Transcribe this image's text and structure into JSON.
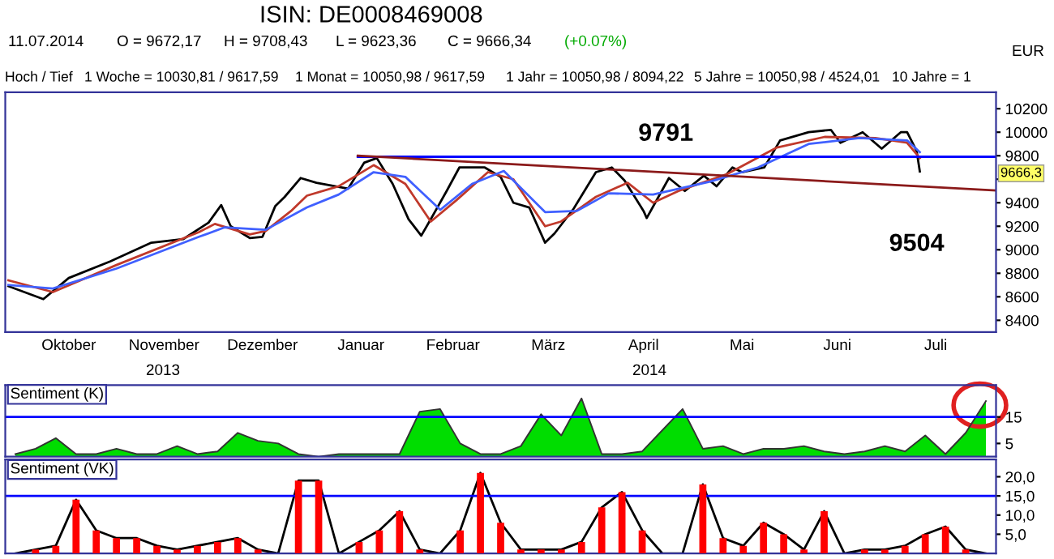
{
  "chart_data": [
    {
      "type": "line",
      "xlim": [
        "2013-09-26",
        "2014-08-04"
      ],
      "ylim": [
        8300,
        10340
      ],
      "yticks": [
        8400,
        8600,
        8800,
        9000,
        9200,
        9400,
        {
          "value": 9600,
          "label": null
        },
        9800,
        10000,
        10200
      ],
      "xticks": [
        {
          "value": "2013-10-16",
          "label": "Oktober"
        },
        {
          "value": "2013-11-15",
          "label": "November"
        },
        {
          "value": "2013-12-16",
          "label": "Dezember"
        },
        {
          "value": "2014-01-16",
          "label": "Januar"
        },
        {
          "value": "2014-02-14",
          "label": "Februar"
        },
        {
          "value": "2014-03-16",
          "label": "März"
        },
        {
          "value": "2014-04-15",
          "label": "April"
        },
        {
          "value": "2014-05-16",
          "label": "Mai"
        },
        {
          "value": "2014-06-15",
          "label": "Juni"
        },
        {
          "value": "2014-07-16",
          "label": "Juli"
        }
      ],
      "grid": false,
      "series": [
        {
          "color": "#000000",
          "x": [
            "2013-09-27",
            "2013-10-08",
            "2013-10-16",
            "2013-10-29",
            "2013-11-11",
            "2013-11-21",
            "2013-11-29",
            "2013-12-03",
            "2013-12-06",
            "2013-12-12",
            "2013-12-16",
            "2013-12-20",
            "2013-12-23",
            "2013-12-28",
            "2014-01-02",
            "2014-01-12",
            "2014-01-17",
            "2014-01-21",
            "2014-01-26",
            "2014-01-31",
            "2014-02-04",
            "2014-02-07",
            "2014-02-12",
            "2014-02-16",
            "2014-02-24",
            "2014-03-01",
            "2014-03-05",
            "2014-03-10",
            "2014-03-15",
            "2014-03-18",
            "2014-03-24",
            "2014-03-31",
            "2014-04-05",
            "2014-04-09",
            "2014-04-15",
            "2014-04-16",
            "2014-04-23",
            "2014-04-28",
            "2014-05-04",
            "2014-05-08",
            "2014-05-13",
            "2014-05-16",
            "2014-05-23",
            "2014-05-28",
            "2014-06-06",
            "2014-06-13",
            "2014-06-16",
            "2014-06-23",
            "2014-06-29",
            "2014-07-05",
            "2014-07-07",
            "2014-07-10",
            "2014-07-11"
          ],
          "values": [
            8690,
            8580,
            8760,
            8900,
            9060,
            9090,
            9230,
            9380,
            9200,
            9100,
            9110,
            9370,
            9450,
            9610,
            9570,
            9520,
            9740,
            9780,
            9560,
            9260,
            9120,
            9260,
            9500,
            9700,
            9700,
            9620,
            9400,
            9360,
            9060,
            9140,
            9350,
            9660,
            9700,
            9590,
            9330,
            9270,
            9610,
            9500,
            9630,
            9540,
            9700,
            9660,
            9700,
            9930,
            10000,
            10020,
            9910,
            10000,
            9860,
            10000,
            10000,
            9840,
            9666
          ]
        },
        {
          "color": "#c0392b",
          "x": [
            "2013-09-27",
            "2013-10-11",
            "2013-10-31",
            "2013-11-26",
            "2013-12-01",
            "2013-12-12",
            "2013-12-17",
            "2013-12-25",
            "2013-12-30",
            "2014-01-09",
            "2014-01-20",
            "2014-01-30",
            "2014-02-07",
            "2014-02-15",
            "2014-02-25",
            "2014-03-05",
            "2014-03-15",
            "2014-03-20",
            "2014-03-31",
            "2014-04-10",
            "2014-04-18",
            "2014-04-26",
            "2014-05-11",
            "2014-05-27",
            "2014-06-11",
            "2014-06-27",
            "2014-07-07",
            "2014-07-11"
          ],
          "values": [
            8740,
            8640,
            8870,
            9150,
            9220,
            9130,
            9160,
            9330,
            9460,
            9540,
            9720,
            9560,
            9240,
            9420,
            9660,
            9600,
            9200,
            9240,
            9450,
            9570,
            9400,
            9500,
            9640,
            9870,
            9960,
            9950,
            9910,
            9780
          ]
        },
        {
          "color": "#4060ff",
          "x": [
            "2013-09-27",
            "2013-10-11",
            "2013-10-31",
            "2013-11-26",
            "2013-12-04",
            "2013-12-17",
            "2013-12-30",
            "2014-01-09",
            "2014-01-20",
            "2014-01-30",
            "2014-02-10",
            "2014-02-20",
            "2014-03-02",
            "2014-03-15",
            "2014-03-25",
            "2014-04-04",
            "2014-04-18",
            "2014-05-06",
            "2014-05-21",
            "2014-06-06",
            "2014-06-22",
            "2014-07-07",
            "2014-07-11"
          ],
          "values": [
            8700,
            8670,
            8840,
            9110,
            9190,
            9170,
            9360,
            9470,
            9660,
            9620,
            9340,
            9560,
            9670,
            9320,
            9330,
            9480,
            9470,
            9580,
            9700,
            9900,
            9950,
            9930,
            9830
          ]
        },
        {
          "color": "#0000ff",
          "x": [
            "2014-01-15",
            "2014-08-04"
          ],
          "values": [
            9791,
            9791
          ]
        },
        {
          "color": "#8b1a1a",
          "x": [
            "2014-01-15",
            "2014-08-04"
          ],
          "values": [
            9800,
            9504
          ]
        }
      ],
      "annotations": [
        "ISIN: DE0008469008",
        "11.07.2014",
        "O = 9672,17",
        "H = 9708,43",
        "L = 9623,36",
        "C = 9666,34",
        "(+0.07%)",
        "Hoch / Tief",
        "1 Woche = 10030,81 / 9617,59",
        "1 Monat = 10050,98 / 9617,59",
        "1 Jahr = 10050,98 / 8094,22",
        "5 Jahre = 10050,98 / 4524,01",
        "10 Jahre = 1",
        "EUR",
        "2013",
        "2014",
        "9666,3",
        {
          "text": "9791",
          "x": "2014-04-22",
          "y": 9791
        },
        {
          "text": "9504",
          "x": "2014-07-10",
          "y": 9504
        }
      ]
    },
    {
      "type": "area",
      "title": "Sentiment (K)",
      "ylim": [
        0,
        27
      ],
      "yticks": [
        5,
        15
      ],
      "grid": false,
      "categories": [
        null,
        null,
        null,
        null,
        null,
        null,
        null,
        null,
        null,
        null,
        null,
        null,
        null,
        null,
        null,
        null,
        null,
        null,
        null,
        null,
        null,
        null,
        null,
        null,
        null,
        null,
        null,
        null,
        null,
        null,
        null,
        null,
        null,
        null,
        null,
        null,
        null,
        null,
        null,
        null,
        null,
        null,
        null,
        null,
        null,
        null,
        null,
        null,
        null
      ],
      "ref_lines": [
        {
          "axis": "y",
          "value": 15,
          "color": "#0000ff"
        }
      ],
      "series": [
        {
          "color": "#00dd00",
          "values": [
            1,
            3,
            7,
            1,
            1,
            3,
            1,
            1,
            4,
            1,
            2,
            9,
            6,
            5,
            1,
            0,
            1,
            1,
            1,
            1,
            17,
            18,
            5,
            1,
            1,
            4,
            16,
            8,
            22,
            1,
            1,
            2,
            10,
            18,
            3,
            4,
            1,
            3,
            3,
            4,
            2,
            1,
            2,
            4,
            2,
            8,
            1,
            9,
            21
          ]
        }
      ]
    },
    {
      "type": "bar",
      "title": "Sentiment (VK)",
      "ylim": [
        0,
        24.5
      ],
      "yticks": [
        {
          "value": 5,
          "label": "5,0"
        },
        {
          "value": 10,
          "label": "10,0"
        },
        {
          "value": 15,
          "label": "15,0"
        },
        {
          "value": 20,
          "label": "20,0"
        }
      ],
      "grid": false,
      "categories": [
        null,
        null,
        null,
        null,
        null,
        null,
        null,
        null,
        null,
        null,
        null,
        null,
        null,
        null,
        null,
        null,
        null,
        null,
        null,
        null,
        null,
        null,
        null,
        null,
        null,
        null,
        null,
        null,
        null,
        null,
        null,
        null,
        null,
        null,
        null,
        null,
        null,
        null,
        null,
        null,
        null,
        null,
        null,
        null,
        null,
        null,
        null,
        null,
        null
      ],
      "ref_lines": [
        {
          "axis": "y",
          "value": 15,
          "color": "#0000ff"
        }
      ],
      "series": [
        {
          "color": "#ff0000",
          "values": [
            0,
            1,
            2,
            14,
            6,
            4,
            4,
            2,
            1,
            2,
            3,
            4,
            1,
            0,
            19,
            19,
            0,
            3,
            6,
            11,
            1,
            0,
            6,
            21,
            8,
            1,
            1,
            1,
            3,
            12,
            16,
            6,
            0,
            0,
            18,
            4,
            2,
            8,
            5,
            1,
            11,
            0,
            1,
            1,
            2,
            5,
            7,
            1,
            0
          ]
        },
        {
          "type": "line",
          "color": "#000000",
          "values": [
            0,
            1,
            2,
            14,
            6,
            4,
            4,
            2,
            1,
            2,
            3,
            4,
            1,
            0,
            19,
            19,
            0,
            3,
            6,
            11,
            1,
            0,
            6,
            21,
            8,
            1,
            1,
            1,
            3,
            12,
            16,
            6,
            0,
            0,
            18,
            4,
            2,
            8,
            5,
            1,
            11,
            0,
            1,
            1,
            2,
            5,
            7,
            1,
            0
          ]
        }
      ]
    }
  ]
}
